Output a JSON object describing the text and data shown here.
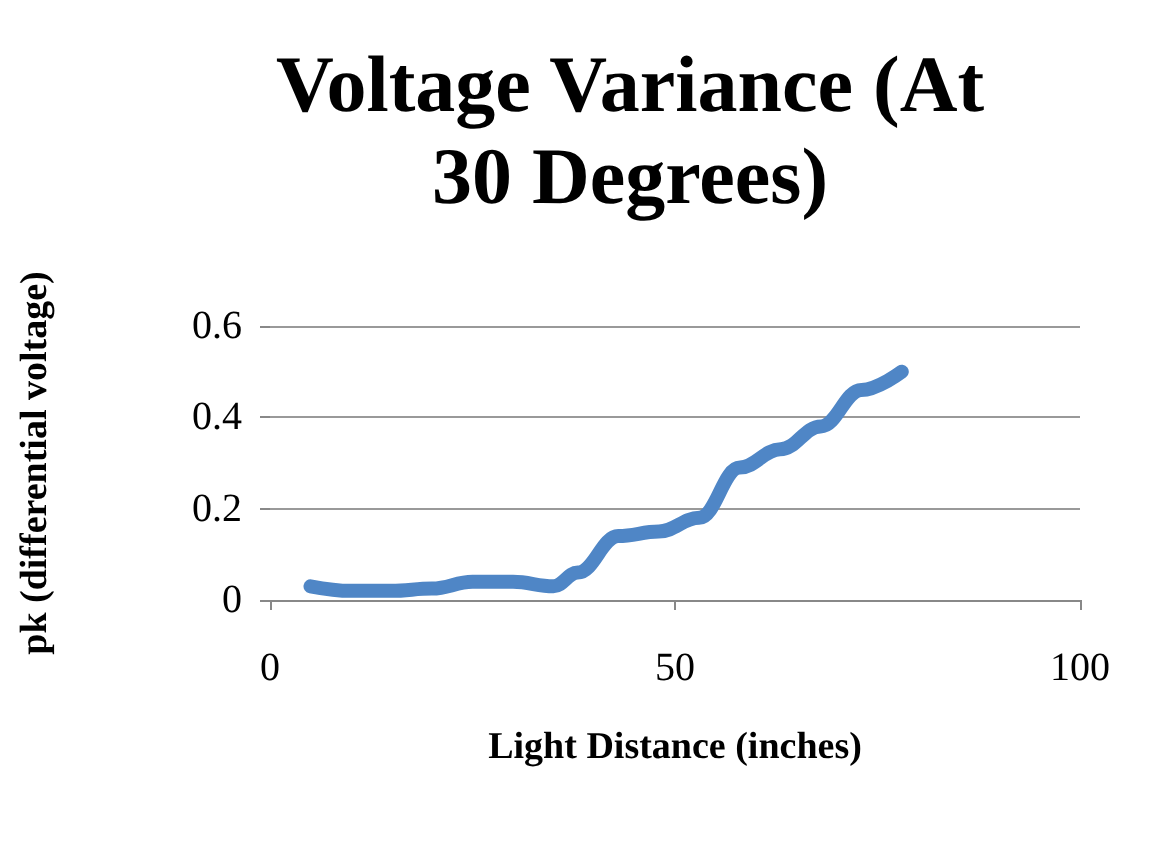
{
  "chart_data": {
    "type": "line",
    "title": "Voltage Variance (At\n30 Degrees)",
    "xlabel": "Light Distance (inches)",
    "ylabel": "pk (differential voltage)",
    "series": [
      {
        "color": "#4f86c6",
        "x": [
          5,
          10,
          15,
          20,
          25,
          30,
          35,
          38,
          43,
          48,
          53,
          58,
          63,
          68,
          73,
          78
        ],
        "values": [
          0.03,
          0.02,
          0.02,
          0.025,
          0.04,
          0.04,
          0.03,
          0.06,
          0.14,
          0.15,
          0.18,
          0.29,
          0.33,
          0.38,
          0.46,
          0.5
        ]
      }
    ],
    "xlim": [
      0,
      100
    ],
    "xticks": [
      0,
      50,
      100
    ],
    "ylim": [
      0,
      0.6
    ],
    "yticks": [
      0,
      0.2,
      0.4,
      0.6
    ],
    "grid": "y",
    "line_style": "solid"
  }
}
